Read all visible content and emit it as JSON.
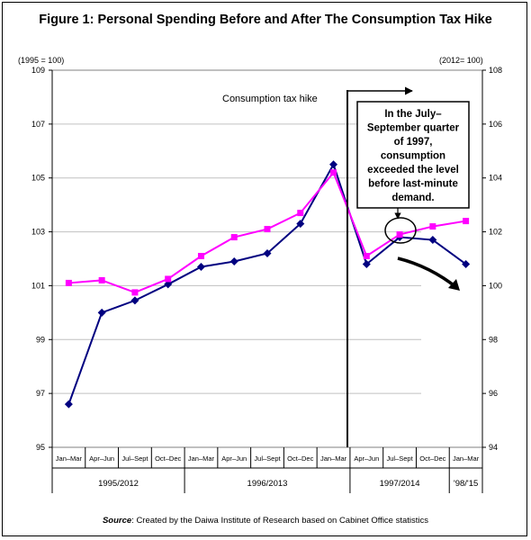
{
  "title": "Figure 1: Personal Spending Before and After The Consumption Tax Hike",
  "source_label": "Source",
  "source_text": ": Created by the Daiwa Institute of Research based on Cabinet Office statistics",
  "colors": {
    "series_1995": "#000080",
    "series_2012": "#ff00ff",
    "axis": "#000000",
    "grid": "#c0c0c0"
  },
  "chart_data": {
    "type": "line",
    "left_axis": {
      "label": "(1995 = 100)",
      "min": 95,
      "max": 109,
      "ticks": [
        95,
        97,
        99,
        101,
        103,
        105,
        107,
        109
      ]
    },
    "right_axis": {
      "label": "(2012= 100)",
      "min": 94,
      "max": 108,
      "ticks": [
        94,
        96,
        98,
        100,
        102,
        104,
        106,
        108
      ]
    },
    "categories": [
      "Jan–Mar",
      "Apr–Jun",
      "Jul–Sept",
      "Oct–Dec",
      "Jan–Mar",
      "Apr–Jun",
      "Jul–Sept",
      "Oct–Dec",
      "Jan–Mar",
      "Apr–Jun",
      "Jul–Sept",
      "Oct–Dec",
      "Jan–Mar"
    ],
    "year_groups": [
      {
        "label": "1995/2012",
        "count": 4
      },
      {
        "label": "1996/2013",
        "count": 5
      },
      {
        "label": "1997/2014",
        "count": 3
      },
      {
        "label": "'98/'15",
        "count": 1
      }
    ],
    "series": [
      {
        "axis": "left",
        "color": "#000080",
        "marker": "diamond",
        "values": [
          96.6,
          100.0,
          100.45,
          101.05,
          101.7,
          101.9,
          102.2,
          103.3,
          105.5,
          101.8,
          102.8,
          102.7,
          101.8
        ]
      },
      {
        "axis": "left",
        "color": "#ff00ff",
        "marker": "square",
        "values": [
          101.1,
          101.2,
          100.75,
          101.25,
          102.1,
          102.8,
          103.1,
          103.7,
          105.2,
          102.1,
          102.9,
          103.2,
          103.4
        ]
      }
    ],
    "annotations": {
      "tax_hike_label": "Consumption tax hike",
      "callout_lines": [
        "In the July–",
        "September quarter",
        "of 1997,",
        "consumption",
        "exceeded the level",
        "before last-minute",
        "demand."
      ]
    }
  }
}
